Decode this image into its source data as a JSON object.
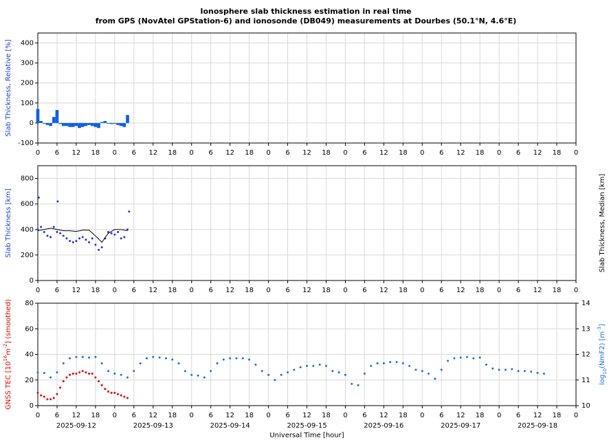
{
  "title": [
    "Ionosphere slab thickness estimation in real time",
    "from GPS (NovAtel GPStation-6) and ionosonde (DB049) measurements at Dourbes (50.1°N, 4.6°E)"
  ],
  "chart_data": [
    {
      "type": "bar",
      "ylabel": [
        {
          "text": "Slab Thickness, Relative [%]"
        }
      ],
      "ylabel_color": "#1a3fd0",
      "xlim": [
        0,
        168
      ],
      "ylim": [
        -100,
        450
      ],
      "yticks": [
        -100,
        0,
        100,
        200,
        300,
        400
      ],
      "grid": true,
      "xticks": [
        0,
        6,
        12,
        18,
        {
          "value": 24,
          "label": "0"
        },
        {
          "value": 30,
          "label": "6"
        },
        {
          "value": 36,
          "label": "12"
        },
        {
          "value": 42,
          "label": "18"
        },
        {
          "value": 48,
          "label": "0"
        },
        {
          "value": 54,
          "label": "6"
        },
        {
          "value": 60,
          "label": "12"
        },
        {
          "value": 66,
          "label": "18"
        },
        {
          "value": 72,
          "label": "0"
        },
        {
          "value": 78,
          "label": "6"
        },
        {
          "value": 84,
          "label": "12"
        },
        {
          "value": 90,
          "label": "18"
        },
        {
          "value": 96,
          "label": "0"
        },
        {
          "value": 102,
          "label": "6"
        },
        {
          "value": 108,
          "label": "12"
        },
        {
          "value": 114,
          "label": "18"
        },
        {
          "value": 120,
          "label": "0"
        },
        {
          "value": 126,
          "label": "6"
        },
        {
          "value": 132,
          "label": "12"
        },
        {
          "value": 138,
          "label": "18"
        },
        {
          "value": 144,
          "label": "0"
        },
        {
          "value": 150,
          "label": "6"
        },
        {
          "value": 156,
          "label": "12"
        },
        {
          "value": 162,
          "label": "18"
        },
        {
          "value": 168,
          "label": "0"
        }
      ],
      "series": [
        {
          "color": "#1060e0",
          "x": [
            0,
            1,
            2,
            3,
            4,
            5,
            6,
            7,
            8,
            9,
            10,
            11,
            12,
            13,
            14,
            15,
            16,
            17,
            18,
            19,
            20,
            21,
            22,
            23,
            24,
            25,
            26,
            27,
            28
          ],
          "values": [
            70,
            10,
            0,
            -10,
            -15,
            30,
            65,
            -5,
            -15,
            -15,
            -20,
            -20,
            -15,
            -25,
            -20,
            -15,
            -10,
            -15,
            -20,
            -25,
            5,
            10,
            0,
            -5,
            0,
            -10,
            -15,
            -20,
            40
          ]
        }
      ]
    },
    {
      "type": "scatter",
      "ylabel": [
        {
          "text": "Slab Thickness [km]"
        }
      ],
      "ylabel_color": "#1a3fd0",
      "y2label": [
        {
          "text": "Slab Thickness, Median [km]"
        }
      ],
      "y2label_color": "#000000",
      "xlim": [
        0,
        168
      ],
      "ylim": [
        0,
        900
      ],
      "yticks": [
        0,
        200,
        400,
        600,
        800
      ],
      "grid": true,
      "xticks": [
        0,
        6,
        12,
        18,
        {
          "value": 24,
          "label": "0"
        },
        {
          "value": 30,
          "label": "6"
        },
        {
          "value": 36,
          "label": "12"
        },
        {
          "value": 42,
          "label": "18"
        },
        {
          "value": 48,
          "label": "0"
        },
        {
          "value": 54,
          "label": "6"
        },
        {
          "value": 60,
          "label": "12"
        },
        {
          "value": 66,
          "label": "18"
        },
        {
          "value": 72,
          "label": "0"
        },
        {
          "value": 78,
          "label": "6"
        },
        {
          "value": 84,
          "label": "12"
        },
        {
          "value": 90,
          "label": "18"
        },
        {
          "value": 96,
          "label": "0"
        },
        {
          "value": 102,
          "label": "6"
        },
        {
          "value": 108,
          "label": "12"
        },
        {
          "value": 114,
          "label": "18"
        },
        {
          "value": 120,
          "label": "0"
        },
        {
          "value": 126,
          "label": "6"
        },
        {
          "value": 132,
          "label": "12"
        },
        {
          "value": 138,
          "label": "18"
        },
        {
          "value": 144,
          "label": "0"
        },
        {
          "value": 150,
          "label": "6"
        },
        {
          "value": 156,
          "label": "12"
        },
        {
          "value": 162,
          "label": "18"
        },
        {
          "value": 168,
          "label": "0"
        }
      ],
      "series": [
        {
          "color": "#2233dd",
          "marker": "dot",
          "x": [
            0,
            0.3,
            1,
            2,
            3,
            4,
            5,
            6,
            6.2,
            7,
            8,
            9,
            10,
            11,
            12,
            13,
            14,
            15,
            16,
            17,
            18,
            19,
            20,
            21,
            22,
            23,
            24,
            25,
            26,
            27,
            28,
            28.5
          ],
          "values": [
            400,
            650,
            420,
            380,
            350,
            340,
            420,
            380,
            620,
            370,
            350,
            330,
            310,
            300,
            310,
            330,
            340,
            320,
            300,
            330,
            280,
            240,
            260,
            330,
            380,
            370,
            360,
            380,
            330,
            340,
            400,
            540
          ]
        },
        {
          "color": "#000000",
          "marker": "line",
          "x": [
            0,
            2,
            4,
            6,
            8,
            10,
            12,
            14,
            16,
            18,
            20,
            22,
            24,
            26,
            28
          ],
          "values": [
            390,
            400,
            410,
            400,
            390,
            390,
            385,
            395,
            395,
            350,
            300,
            370,
            400,
            400,
            390
          ]
        }
      ]
    },
    {
      "type": "scatter",
      "ylabel": [
        {
          "text": "GNSS TEC [10"
        },
        {
          "text": "16",
          "script": "super"
        },
        {
          "text": "m"
        },
        {
          "text": "-2",
          "script": "super"
        },
        {
          "text": "] (smoothed)"
        }
      ],
      "ylabel_color": "#e00000",
      "y2label": [
        {
          "text": "log"
        },
        {
          "text": "10",
          "script": "sub"
        },
        {
          "text": "(NmF2) [m"
        },
        {
          "text": "-3",
          "script": "super"
        },
        {
          "text": "]"
        }
      ],
      "y2label_color": "#1a6fd6",
      "xlabel": "Universal Time [hour]",
      "date_labels": [
        {
          "value": 12,
          "label": "2025-09-12"
        },
        {
          "value": 36,
          "label": "2025-09-13"
        },
        {
          "value": 60,
          "label": "2025-09-14"
        },
        {
          "value": 84,
          "label": "2025-09-15"
        },
        {
          "value": 108,
          "label": "2025-09-16"
        },
        {
          "value": 132,
          "label": "2025-09-17"
        },
        {
          "value": 156,
          "label": "2025-09-18"
        }
      ],
      "xlim": [
        0,
        168
      ],
      "ylim": [
        0,
        80
      ],
      "yticks": [
        0,
        20,
        40,
        60,
        80
      ],
      "y2lim": [
        10,
        14
      ],
      "y2ticks": [
        10,
        11,
        12,
        13,
        14
      ],
      "grid": true,
      "xticks": [
        0,
        6,
        12,
        18,
        {
          "value": 24,
          "label": "0"
        },
        {
          "value": 30,
          "label": "6"
        },
        {
          "value": 36,
          "label": "12"
        },
        {
          "value": 42,
          "label": "18"
        },
        {
          "value": 48,
          "label": "0"
        },
        {
          "value": 54,
          "label": "6"
        },
        {
          "value": 60,
          "label": "12"
        },
        {
          "value": 66,
          "label": "18"
        },
        {
          "value": 72,
          "label": "0"
        },
        {
          "value": 78,
          "label": "6"
        },
        {
          "value": 84,
          "label": "12"
        },
        {
          "value": 90,
          "label": "18"
        },
        {
          "value": 96,
          "label": "0"
        },
        {
          "value": 102,
          "label": "6"
        },
        {
          "value": 108,
          "label": "12"
        },
        {
          "value": 114,
          "label": "18"
        },
        {
          "value": 120,
          "label": "0"
        },
        {
          "value": 126,
          "label": "6"
        },
        {
          "value": 132,
          "label": "12"
        },
        {
          "value": 138,
          "label": "18"
        },
        {
          "value": 144,
          "label": "0"
        },
        {
          "value": 150,
          "label": "6"
        },
        {
          "value": 156,
          "label": "12"
        },
        {
          "value": 162,
          "label": "18"
        },
        {
          "value": 168,
          "label": "0"
        }
      ],
      "series": [
        {
          "color": "#e00000",
          "marker": "dot",
          "x": [
            0,
            1,
            2,
            3,
            4,
            5,
            6,
            7,
            8,
            9,
            10,
            11,
            12,
            13,
            14,
            15,
            16,
            17,
            18,
            19,
            20,
            21,
            22,
            23,
            24,
            25,
            26,
            27,
            28
          ],
          "values": [
            10,
            8,
            7,
            5,
            5,
            6,
            9,
            14,
            19,
            22,
            24,
            25,
            25,
            26,
            27,
            26,
            25,
            25,
            22,
            19,
            16,
            13,
            11,
            10,
            10,
            9,
            8,
            7,
            6
          ]
        },
        {
          "color": "#1a6fd6",
          "marker": "dot",
          "axis": "y2",
          "x": [
            0,
            2,
            4,
            6,
            8,
            10,
            12,
            14,
            16,
            18,
            20,
            22,
            24,
            26,
            28,
            30,
            32,
            34,
            36,
            38,
            40,
            42,
            44,
            46,
            48,
            50,
            52,
            54,
            56,
            58,
            60,
            62,
            64,
            66,
            68,
            70,
            72,
            74,
            76,
            78,
            80,
            82,
            84,
            86,
            88,
            90,
            92,
            94,
            96,
            98,
            100,
            102,
            104,
            106,
            108,
            110,
            112,
            114,
            116,
            118,
            120,
            122,
            124,
            126,
            128,
            130,
            132,
            134,
            136,
            138,
            140,
            142,
            144,
            146,
            148,
            150,
            152,
            154,
            156,
            158
          ],
          "values": [
            11.3,
            11.275,
            11.1,
            11.3,
            11.65,
            11.85,
            11.9,
            11.9,
            11.875,
            11.9,
            11.65,
            11.35,
            11.25,
            11.2,
            11.1,
            11.35,
            11.65,
            11.85,
            11.9,
            11.875,
            11.85,
            11.8,
            11.65,
            11.35,
            11.2,
            11.175,
            11.1,
            11.35,
            11.65,
            11.8,
            11.85,
            11.85,
            11.85,
            11.8,
            11.6,
            11.35,
            11.2,
            11.0,
            11.2,
            11.3,
            11.4,
            11.5,
            11.55,
            11.55,
            11.6,
            11.55,
            11.35,
            11.3,
            11.2,
            10.85,
            10.8,
            11.25,
            11.55,
            11.65,
            11.65,
            11.7,
            11.7,
            11.65,
            11.55,
            11.4,
            11.35,
            11.25,
            11.05,
            11.4,
            11.75,
            11.85,
            11.875,
            11.9,
            11.85,
            11.875,
            11.6,
            11.45,
            11.4,
            11.4,
            11.425,
            11.35,
            11.35,
            11.325,
            11.275,
            11.25
          ]
        }
      ]
    }
  ]
}
